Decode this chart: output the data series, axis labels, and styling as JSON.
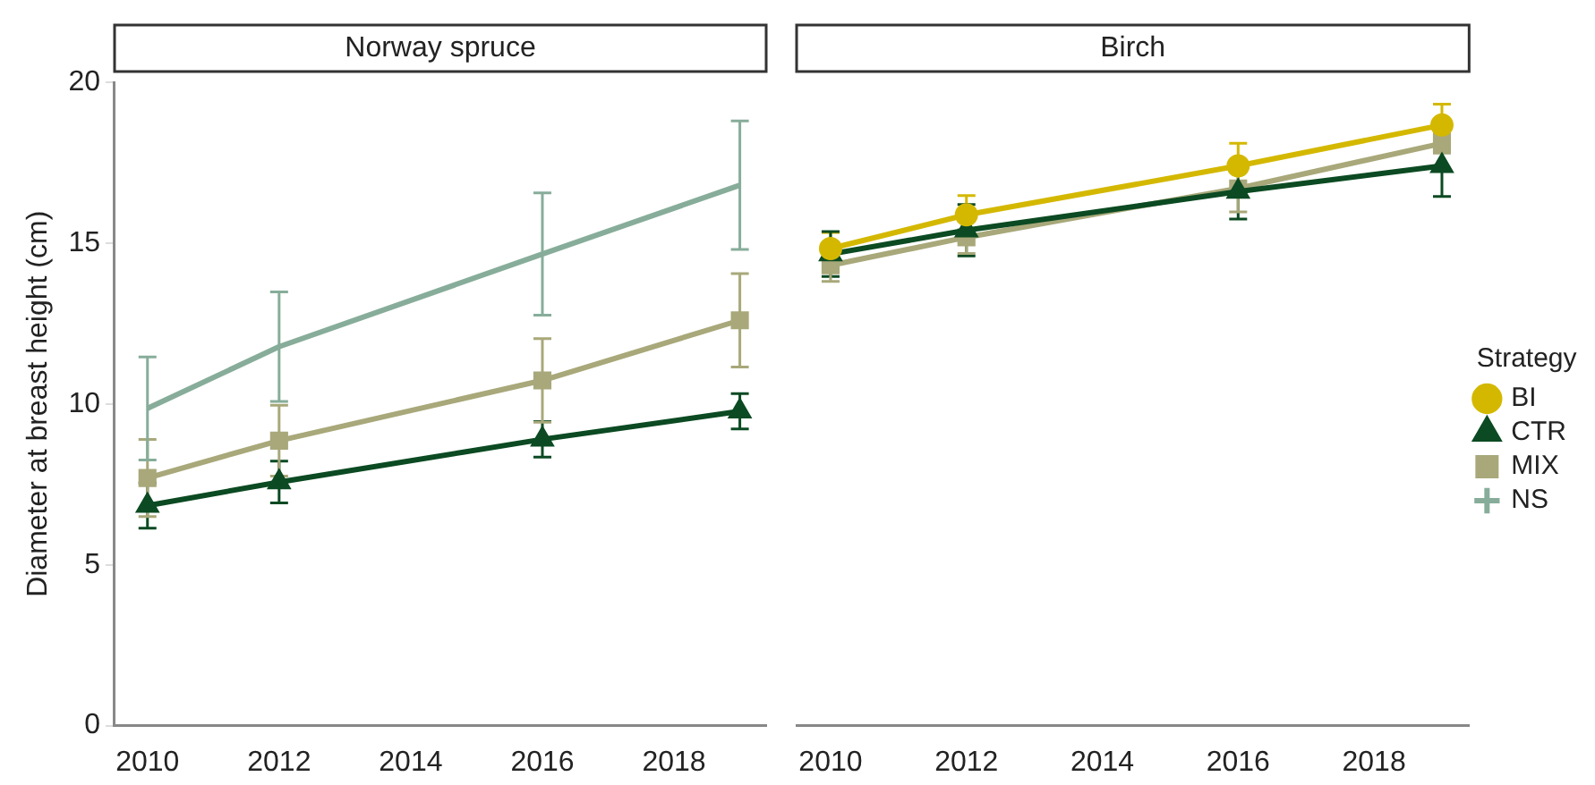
{
  "chart_data": [
    {
      "type": "line",
      "title": "Norway spruce",
      "ylabel": "Diameter at breast height (cm)",
      "xlim": [
        2009.5,
        2019.4
      ],
      "xticks": [
        2010,
        2012,
        2014,
        2016,
        2018
      ],
      "ylim": [
        0,
        20
      ],
      "yticks": [
        0,
        5,
        10,
        15,
        20
      ],
      "grid": false,
      "legend": false,
      "x": [
        2010,
        2012,
        2016,
        2019
      ],
      "series": [
        {
          "color": "#0b4a22",
          "marker": "triangle",
          "values": [
            6.84,
            7.57,
            8.9,
            9.77
          ],
          "errors": [
            0.7,
            0.65,
            0.55,
            0.55
          ]
        },
        {
          "color": "#a8a87a",
          "marker": "square",
          "values": [
            7.7,
            8.86,
            10.73,
            12.6
          ],
          "errors": [
            1.2,
            1.1,
            1.3,
            1.45
          ]
        },
        {
          "color": "#87ad9a",
          "marker": "none",
          "values": [
            9.86,
            11.78,
            14.66,
            16.8
          ],
          "errors": [
            1.6,
            1.7,
            1.9,
            2.0
          ]
        }
      ]
    },
    {
      "type": "line",
      "title": "Birch",
      "xlim": [
        2009.5,
        2019.4
      ],
      "xticks": [
        2010,
        2012,
        2014,
        2016,
        2018
      ],
      "ylim": [
        0,
        20
      ],
      "yticks": [
        0,
        5,
        10,
        15,
        20
      ],
      "tick_labels": "x",
      "grid": false,
      "legend": "right",
      "legend_title": "Strategy",
      "x": [
        2010,
        2012,
        2016,
        2019
      ],
      "series": [
        {
          "name": "BI",
          "color": "#d4b800",
          "marker": "circle",
          "values": [
            14.83,
            15.88,
            17.4,
            18.67
          ],
          "errors": [
            0.5,
            0.6,
            0.7,
            0.65
          ]
        },
        {
          "name": "CTR",
          "color": "#0b4a22",
          "marker": "triangle",
          "values": [
            14.66,
            15.4,
            16.6,
            17.4
          ],
          "errors": [
            0.7,
            0.8,
            0.85,
            0.95
          ]
        },
        {
          "name": "MIX",
          "color": "#a8a87a",
          "marker": "square",
          "values": [
            14.31,
            15.18,
            16.7,
            18.1
          ],
          "errors": [
            0.5,
            0.5,
            0.73,
            0.3
          ]
        },
        {
          "name": "NS",
          "color": "#87ad9a",
          "marker": "none",
          "values": [
            null,
            null,
            null,
            null
          ]
        }
      ]
    }
  ]
}
